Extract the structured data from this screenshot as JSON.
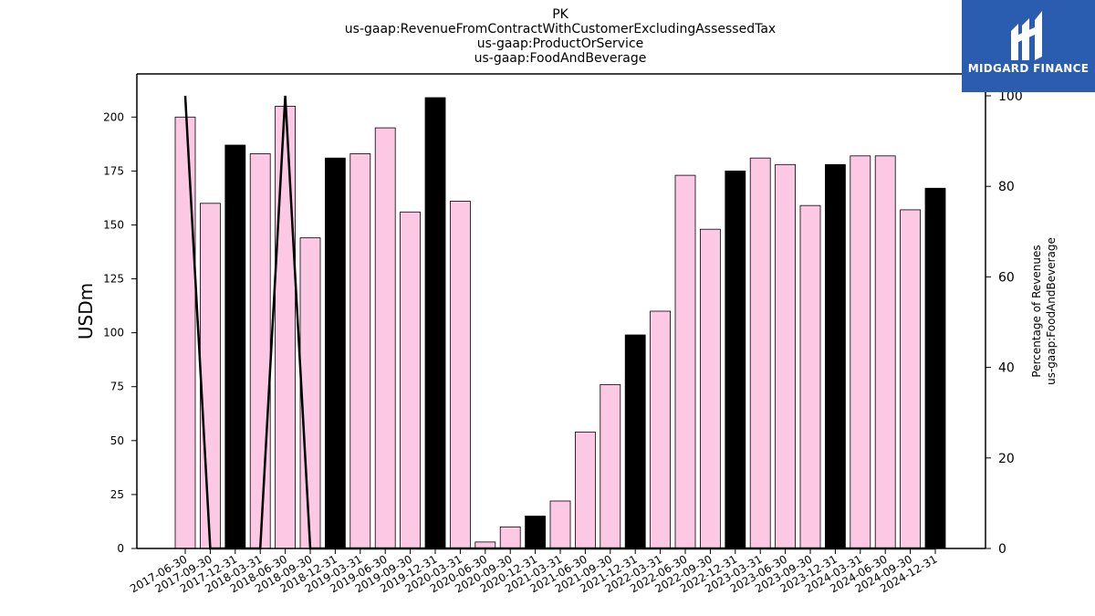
{
  "logo": {
    "text": "MIDGARD FINANCE",
    "background": "#2a5db0"
  },
  "chart_data": {
    "type": "bar",
    "title_lines": [
      "PK",
      "us-gaap:RevenueFromContractWithCustomerExcludingAssessedTax",
      "us-gaap:ProductOrService",
      "us-gaap:FoodAndBeverage"
    ],
    "ylabel": "USDm",
    "y2label_lines": [
      "Percentage of Revenues",
      "us-gaap:FoodAndBeverage"
    ],
    "ylim": [
      0,
      220
    ],
    "y2lim": [
      0,
      100
    ],
    "yticks": [
      0,
      25,
      50,
      75,
      100,
      125,
      150,
      175,
      200
    ],
    "y2ticks": [
      0,
      20,
      40,
      60,
      80,
      100
    ],
    "colors": {
      "quarter": "#fcc8e4",
      "year_end": "#000000",
      "line": "#000000"
    },
    "categories": [
      "2017-06-30",
      "2017-09-30",
      "2017-12-31",
      "2018-03-31",
      "2018-06-30",
      "2018-09-30",
      "2018-12-31",
      "2019-03-31",
      "2019-06-30",
      "2019-09-30",
      "2019-12-31",
      "2020-03-31",
      "2020-06-30",
      "2020-09-30",
      "2020-12-31",
      "2021-03-31",
      "2021-06-30",
      "2021-09-30",
      "2021-12-31",
      "2022-03-31",
      "2022-06-30",
      "2022-09-30",
      "2022-12-31",
      "2023-03-31",
      "2023-06-30",
      "2023-09-30",
      "2023-12-31",
      "2024-03-31",
      "2024-06-30",
      "2024-09-30",
      "2024-12-31"
    ],
    "series": [
      {
        "kind": "bar",
        "values": [
          200,
          160,
          187,
          183,
          205,
          144,
          181,
          183,
          195,
          156,
          209,
          161,
          3,
          10,
          15,
          22,
          54,
          76,
          99,
          110,
          173,
          148,
          175,
          181,
          178,
          159,
          178,
          182,
          182,
          157,
          167
        ],
        "year_end": [
          false,
          false,
          true,
          false,
          false,
          false,
          true,
          false,
          false,
          false,
          true,
          false,
          false,
          false,
          true,
          false,
          false,
          false,
          true,
          false,
          false,
          false,
          true,
          false,
          false,
          false,
          true,
          false,
          false,
          false,
          true
        ]
      },
      {
        "kind": "line",
        "axis": "right",
        "values": [
          100,
          0,
          0,
          0,
          100,
          0,
          0,
          0,
          0,
          0,
          0,
          0,
          0,
          0,
          0,
          0,
          0,
          0,
          0,
          0,
          0,
          0,
          0,
          0,
          0,
          0,
          0,
          0,
          0,
          0,
          0
        ]
      }
    ]
  }
}
